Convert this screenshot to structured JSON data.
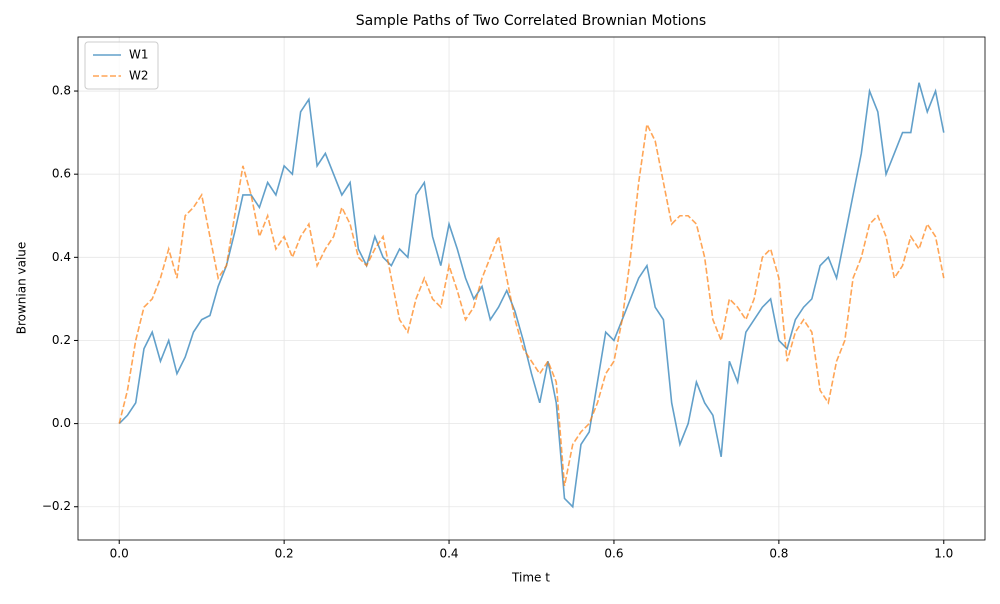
{
  "chart_data": {
    "type": "line",
    "title": "Sample Paths of Two Correlated Brownian Motions",
    "xlabel": "Time t",
    "ylabel": "Brownian value",
    "x": [
      0,
      0.01,
      0.02,
      0.03,
      0.04,
      0.05,
      0.06,
      0.07,
      0.08,
      0.09,
      0.1,
      0.11,
      0.12,
      0.13,
      0.14,
      0.15,
      0.16,
      0.17,
      0.18,
      0.19,
      0.2,
      0.21,
      0.22,
      0.23,
      0.24,
      0.25,
      0.26,
      0.27,
      0.28,
      0.29,
      0.3,
      0.31,
      0.32,
      0.33,
      0.34,
      0.35,
      0.36,
      0.37,
      0.38,
      0.39,
      0.4,
      0.41,
      0.42,
      0.43,
      0.44,
      0.45,
      0.46,
      0.47,
      0.48,
      0.49,
      0.5,
      0.51,
      0.52,
      0.53,
      0.54,
      0.55,
      0.56,
      0.57,
      0.58,
      0.59,
      0.6,
      0.61,
      0.62,
      0.63,
      0.64,
      0.65,
      0.66,
      0.67,
      0.68,
      0.69,
      0.7,
      0.71,
      0.72,
      0.73,
      0.74,
      0.75,
      0.76,
      0.77,
      0.78,
      0.79,
      0.8,
      0.81,
      0.82,
      0.83,
      0.84,
      0.85,
      0.86,
      0.87,
      0.88,
      0.89,
      0.9,
      0.91,
      0.92,
      0.93,
      0.94,
      0.95,
      0.96,
      0.97,
      0.98,
      0.99,
      1.0
    ],
    "series": [
      {
        "name": "W1",
        "color": "#1f77b4",
        "linestyle": "solid",
        "values": [
          0,
          0.02,
          0.05,
          0.18,
          0.22,
          0.15,
          0.2,
          0.12,
          0.16,
          0.22,
          0.25,
          0.26,
          0.33,
          0.38,
          0.46,
          0.55,
          0.55,
          0.52,
          0.58,
          0.55,
          0.62,
          0.6,
          0.75,
          0.78,
          0.62,
          0.65,
          0.6,
          0.55,
          0.58,
          0.42,
          0.38,
          0.45,
          0.4,
          0.38,
          0.42,
          0.4,
          0.55,
          0.58,
          0.45,
          0.38,
          0.48,
          0.42,
          0.35,
          0.3,
          0.33,
          0.25,
          0.28,
          0.32,
          0.27,
          0.2,
          0.12,
          0.05,
          0.15,
          0.05,
          -0.18,
          -0.2,
          -0.05,
          -0.02,
          0.1,
          0.22,
          0.2,
          0.25,
          0.3,
          0.35,
          0.38,
          0.28,
          0.25,
          0.05,
          -0.05,
          0,
          0.1,
          0.05,
          0.02,
          -0.08,
          0.15,
          0.1,
          0.22,
          0.25,
          0.28,
          0.3,
          0.2,
          0.18,
          0.25,
          0.28,
          0.3,
          0.38,
          0.4,
          0.35,
          0.45,
          0.55,
          0.65,
          0.8,
          0.75,
          0.6,
          0.65,
          0.7,
          0.7,
          0.82,
          0.75,
          0.8,
          0.7
        ]
      },
      {
        "name": "W2",
        "color": "#ff7f0e",
        "linestyle": "dashed",
        "values": [
          0,
          0.08,
          0.2,
          0.28,
          0.3,
          0.35,
          0.42,
          0.35,
          0.5,
          0.52,
          0.55,
          0.45,
          0.35,
          0.38,
          0.5,
          0.62,
          0.55,
          0.45,
          0.5,
          0.42,
          0.45,
          0.4,
          0.45,
          0.48,
          0.38,
          0.42,
          0.45,
          0.52,
          0.48,
          0.4,
          0.38,
          0.42,
          0.45,
          0.35,
          0.25,
          0.22,
          0.3,
          0.35,
          0.3,
          0.28,
          0.38,
          0.32,
          0.25,
          0.28,
          0.35,
          0.4,
          0.45,
          0.35,
          0.25,
          0.18,
          0.15,
          0.12,
          0.15,
          0.1,
          -0.15,
          -0.05,
          -0.02,
          0,
          0.05,
          0.12,
          0.15,
          0.25,
          0.4,
          0.58,
          0.72,
          0.68,
          0.58,
          0.48,
          0.5,
          0.5,
          0.48,
          0.4,
          0.25,
          0.2,
          0.3,
          0.28,
          0.25,
          0.3,
          0.4,
          0.42,
          0.35,
          0.15,
          0.22,
          0.25,
          0.22,
          0.08,
          0.05,
          0.15,
          0.2,
          0.35,
          0.4,
          0.48,
          0.5,
          0.45,
          0.35,
          0.38,
          0.45,
          0.42,
          0.48,
          0.45,
          0.35
        ]
      }
    ],
    "xlim": [
      -0.05,
      1.05
    ],
    "ylim": [
      -0.28,
      0.93
    ],
    "xticks": [
      {
        "value": 0,
        "label": "0.0"
      },
      {
        "value": 0.2,
        "label": "0.2"
      },
      {
        "value": 0.4,
        "label": "0.4"
      },
      {
        "value": 0.6,
        "label": "0.6"
      },
      {
        "value": 0.8,
        "label": "0.8"
      },
      {
        "value": 1.0,
        "label": "1.0"
      }
    ],
    "yticks": [
      {
        "value": -0.2,
        "label": "−0.2"
      },
      {
        "value": 0,
        "label": "0.0"
      },
      {
        "value": 0.2,
        "label": "0.2"
      },
      {
        "value": 0.4,
        "label": "0.4"
      },
      {
        "value": 0.6,
        "label": "0.6"
      },
      {
        "value": 0.8,
        "label": "0.8"
      }
    ],
    "grid": true,
    "legend": "upper-left"
  }
}
